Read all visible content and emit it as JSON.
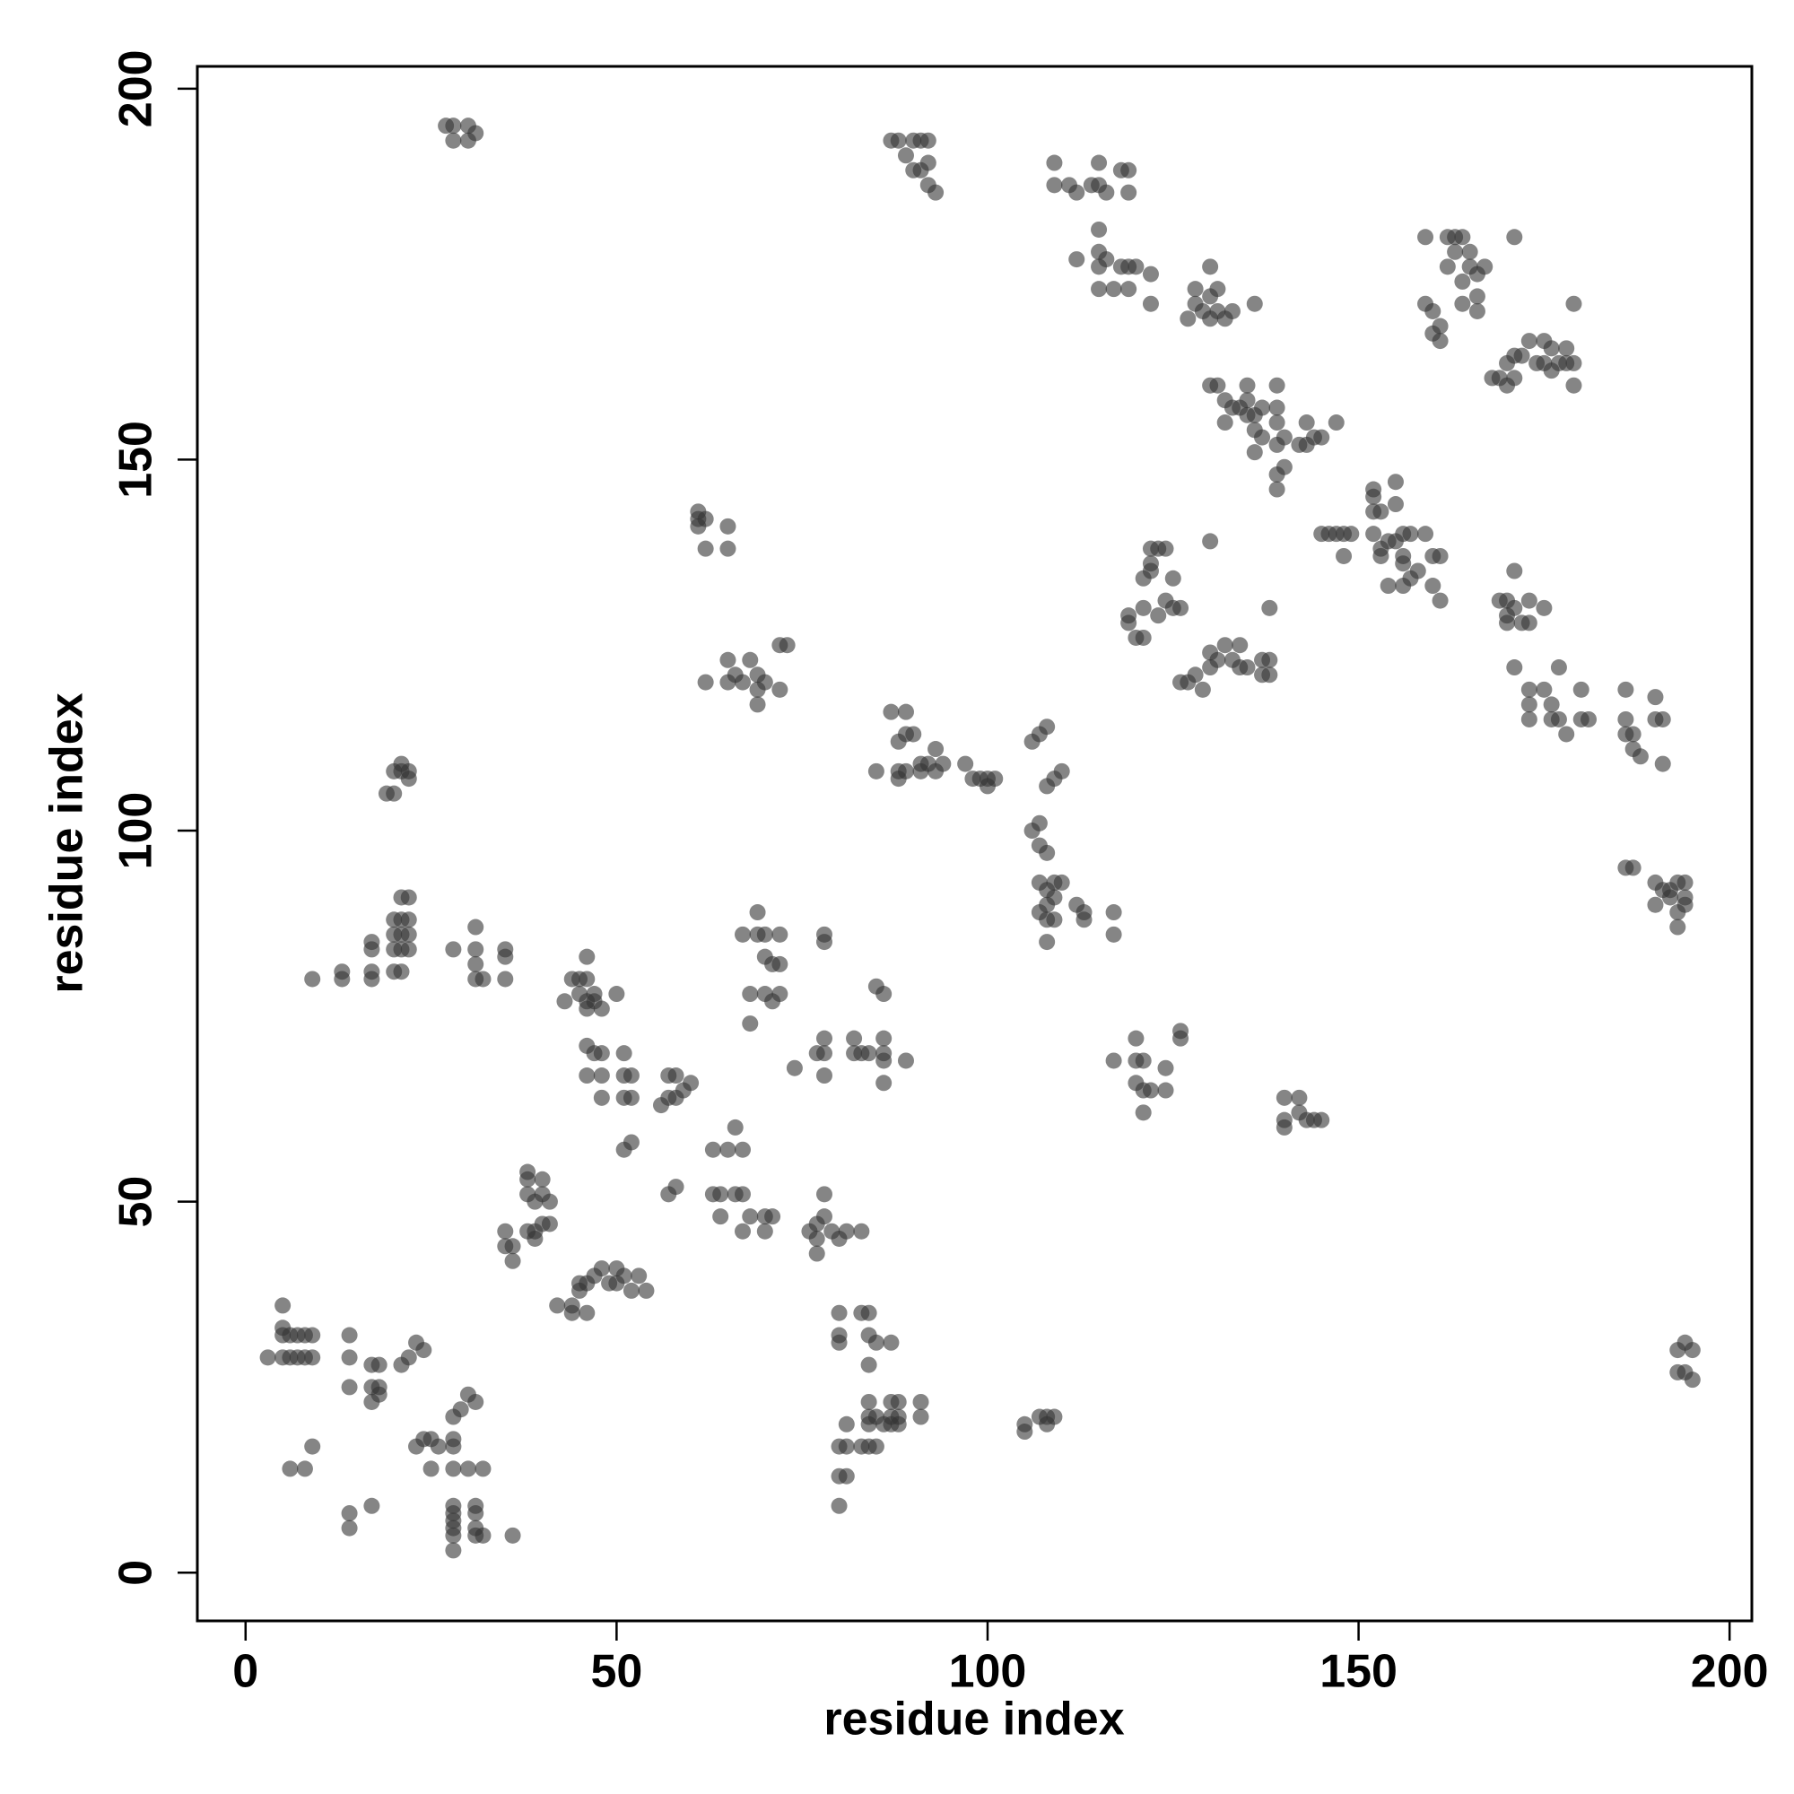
{
  "chart_data": {
    "type": "scatter",
    "xlabel": "residue index",
    "ylabel": "residue index",
    "xlim": [
      -6.5,
      203
    ],
    "ylim": [
      -6.5,
      203
    ],
    "xticks": [
      0,
      50,
      100,
      150,
      200
    ],
    "yticks": [
      0,
      50,
      100,
      150,
      200
    ],
    "color": "#333333",
    "x": [
      27,
      28,
      28,
      30,
      30,
      31,
      3,
      5,
      6,
      7,
      8,
      9,
      5,
      6,
      7,
      8,
      9,
      5,
      5,
      6,
      8,
      9,
      14,
      14,
      14,
      17,
      18,
      17,
      18,
      17,
      18,
      21,
      22,
      23,
      24,
      23,
      24,
      25,
      25,
      28,
      28,
      28,
      29,
      30,
      31,
      28,
      28,
      28,
      28,
      28,
      28,
      31,
      31,
      31,
      31,
      32,
      36,
      30,
      32,
      14,
      14,
      17,
      26,
      28,
      9,
      13,
      13,
      17,
      17,
      17,
      17,
      20,
      21,
      20,
      21,
      22,
      20,
      21,
      22,
      20,
      21,
      22,
      21,
      22,
      28,
      31,
      31,
      31,
      32,
      35,
      35,
      35,
      31,
      19,
      20,
      20,
      21,
      22,
      21,
      22,
      35,
      35,
      36,
      36,
      38,
      38,
      40,
      38,
      39,
      40,
      41,
      38,
      39,
      40,
      41,
      39,
      42,
      44,
      44,
      46,
      45,
      45,
      46,
      47,
      48,
      49,
      50,
      50,
      51,
      52,
      53,
      54,
      43,
      44,
      45,
      46,
      45,
      46,
      47,
      47,
      46,
      46,
      48,
      46,
      47,
      48,
      46,
      48,
      48,
      50,
      51,
      51,
      52,
      51,
      52,
      51,
      52,
      57,
      58,
      59,
      60,
      56,
      57,
      58,
      57,
      58,
      61,
      61,
      62,
      61,
      62,
      65,
      65,
      62,
      65,
      65,
      66,
      67,
      68,
      69,
      69,
      70,
      69,
      72,
      73,
      72,
      63,
      65,
      66,
      67,
      63,
      64,
      64,
      66,
      67,
      67,
      68,
      70,
      70,
      71,
      67,
      69,
      69,
      70,
      72,
      70,
      71,
      72,
      70,
      71,
      72,
      68,
      68,
      74,
      77,
      78,
      78,
      78,
      78,
      78,
      77,
      78,
      79,
      80,
      81,
      76,
      77,
      77,
      78,
      83,
      80,
      80,
      80,
      83,
      84,
      84,
      84,
      85,
      87,
      80,
      81,
      81,
      80,
      81,
      80,
      83,
      84,
      85,
      84,
      84,
      84,
      85,
      86,
      87,
      87,
      87,
      88,
      88,
      88,
      91,
      91,
      82,
      82,
      83,
      84,
      86,
      86,
      86,
      86,
      89,
      85,
      86,
      85,
      87,
      88,
      88,
      89,
      89,
      88,
      89,
      90,
      91,
      91,
      92,
      93,
      93,
      94,
      97,
      98,
      99,
      100,
      100,
      101,
      88,
      89,
      90,
      91,
      92,
      90,
      91,
      92,
      93,
      92,
      87,
      106,
      107,
      108,
      108,
      109,
      110,
      106,
      107,
      107,
      108,
      107,
      108,
      109,
      110,
      108,
      109,
      107,
      108,
      109,
      108,
      112,
      113,
      113,
      117,
      117,
      105,
      105,
      107,
      108,
      109,
      108,
      117,
      120,
      121,
      120,
      120,
      121,
      122,
      121,
      124,
      124,
      126,
      126,
      109,
      109,
      111,
      112,
      114,
      115,
      115,
      116,
      118,
      119,
      119,
      112,
      115,
      115,
      115,
      116,
      117,
      115,
      118,
      119,
      120,
      119,
      122,
      122,
      119,
      120,
      121,
      119,
      121,
      121,
      122,
      122,
      123,
      124,
      125,
      124,
      123,
      125,
      126,
      122,
      126,
      127,
      128,
      129,
      130,
      130,
      131,
      132,
      133,
      134,
      134,
      135,
      137,
      138,
      137,
      138,
      138,
      130,
      127,
      128,
      128,
      129,
      130,
      130,
      131,
      131,
      132,
      133,
      130,
      136,
      130,
      131,
      132,
      132,
      133,
      134,
      135,
      135,
      135,
      136,
      136,
      136,
      137,
      137,
      139,
      139,
      139,
      139,
      140,
      139,
      140,
      139,
      143,
      143,
      144,
      145,
      147,
      142,
      145,
      146,
      147,
      148,
      149,
      148,
      152,
      152,
      152,
      153,
      152,
      153,
      153,
      154,
      155,
      155,
      155,
      156,
      156,
      156,
      157,
      157,
      158,
      159,
      160,
      161,
      160,
      161,
      154,
      156,
      159,
      159,
      160,
      160,
      161,
      161,
      162,
      162,
      163,
      163,
      164,
      164,
      164,
      165,
      165,
      166,
      166,
      166,
      167,
      171,
      168,
      169,
      170,
      170,
      171,
      171,
      172,
      173,
      174,
      175,
      175,
      176,
      176,
      177,
      178,
      178,
      179,
      179,
      179,
      169,
      170,
      170,
      170,
      171,
      171,
      172,
      173,
      173,
      175,
      171,
      173,
      173,
      173,
      175,
      176,
      176,
      177,
      177,
      178,
      180,
      180,
      181,
      186,
      186,
      186,
      187,
      187,
      188,
      190,
      190,
      191,
      191,
      186,
      187,
      190,
      190,
      191,
      192,
      192,
      193,
      194,
      194,
      193,
      194,
      193,
      193,
      194,
      195,
      193,
      194,
      195,
      142,
      143,
      144,
      145,
      140,
      140,
      142,
      140
    ],
    "values": [
      195,
      195,
      193,
      195,
      193,
      194,
      29,
      29,
      29,
      29,
      29,
      29,
      32,
      32,
      32,
      32,
      32,
      36,
      33,
      14,
      14,
      17,
      29,
      32,
      25,
      28,
      28,
      25,
      25,
      23,
      24,
      28,
      29,
      31,
      30,
      17,
      18,
      18,
      14,
      18,
      14,
      21,
      22,
      24,
      23,
      9,
      8,
      7,
      6,
      5,
      3,
      9,
      8,
      6,
      5,
      5,
      5,
      14,
      14,
      8,
      6,
      9,
      17,
      17,
      80,
      81,
      80,
      81,
      80,
      85,
      84,
      81,
      81,
      84,
      84,
      84,
      86,
      86,
      86,
      88,
      88,
      88,
      91,
      91,
      84,
      84,
      82,
      80,
      80,
      80,
      84,
      83,
      87,
      105,
      105,
      108,
      108,
      108,
      109,
      107,
      46,
      44,
      44,
      42,
      54,
      53,
      53,
      51,
      50,
      51,
      50,
      46,
      46,
      47,
      47,
      45,
      36,
      36,
      35,
      35,
      39,
      38,
      39,
      40,
      41,
      39,
      41,
      39,
      40,
      38,
      40,
      38,
      77,
      80,
      80,
      80,
      78,
      77,
      77,
      78,
      83,
      76,
      76,
      71,
      70,
      70,
      67,
      67,
      64,
      78,
      70,
      67,
      67,
      64,
      64,
      57,
      58,
      67,
      67,
      65,
      66,
      63,
      64,
      64,
      51,
      52,
      142,
      143,
      142,
      141,
      138,
      141,
      138,
      120,
      120,
      123,
      121,
      120,
      123,
      121,
      119,
      120,
      117,
      125,
      125,
      119,
      57,
      57,
      60,
      57,
      51,
      51,
      48,
      51,
      51,
      46,
      48,
      48,
      46,
      48,
      86,
      89,
      86,
      86,
      86,
      83,
      82,
      82,
      78,
      77,
      78,
      78,
      74,
      68,
      70,
      70,
      72,
      67,
      85,
      86,
      47,
      48,
      46,
      45,
      46,
      46,
      45,
      43,
      51,
      46,
      35,
      32,
      31,
      35,
      35,
      32,
      28,
      31,
      31,
      17,
      17,
      20,
      13,
      13,
      9,
      17,
      17,
      17,
      20,
      21,
      23,
      21,
      20,
      20,
      21,
      23,
      20,
      21,
      23,
      21,
      23,
      70,
      72,
      70,
      70,
      72,
      70,
      69,
      66,
      69,
      79,
      78,
      108,
      116,
      107,
      108,
      108,
      116,
      112,
      113,
      113,
      108,
      109,
      109,
      108,
      111,
      109,
      109,
      107,
      107,
      106,
      107,
      107,
      193,
      191,
      193,
      193,
      193,
      189,
      189,
      190,
      186,
      187,
      193,
      112,
      113,
      114,
      106,
      107,
      108,
      100,
      101,
      98,
      97,
      93,
      92,
      93,
      93,
      90,
      91,
      89,
      88,
      88,
      85,
      90,
      89,
      88,
      89,
      86,
      20,
      19,
      21,
      21,
      21,
      20,
      69,
      69,
      69,
      72,
      66,
      65,
      65,
      62,
      65,
      68,
      72,
      73,
      190,
      187,
      187,
      186,
      187,
      187,
      190,
      186,
      189,
      189,
      186,
      177,
      176,
      178,
      181,
      177,
      173,
      173,
      176,
      176,
      176,
      173,
      175,
      171,
      128,
      126,
      126,
      129,
      130,
      134,
      136,
      138,
      138,
      138,
      134,
      131,
      129,
      130,
      130,
      135,
      120,
      120,
      121,
      119,
      122,
      124,
      123,
      125,
      123,
      125,
      122,
      122,
      123,
      123,
      121,
      121,
      130,
      139,
      169,
      171,
      173,
      170,
      169,
      172,
      170,
      173,
      169,
      170,
      176,
      171,
      160,
      160,
      158,
      155,
      157,
      157,
      160,
      158,
      156,
      156,
      154,
      151,
      157,
      153,
      160,
      157,
      155,
      152,
      153,
      148,
      149,
      146,
      155,
      152,
      153,
      153,
      155,
      152,
      140,
      140,
      140,
      140,
      140,
      137,
      145,
      146,
      143,
      143,
      140,
      138,
      137,
      139,
      139,
      147,
      144,
      140,
      137,
      136,
      140,
      134,
      135,
      140,
      137,
      137,
      133,
      131,
      133,
      133,
      180,
      171,
      170,
      167,
      168,
      166,
      176,
      180,
      180,
      178,
      174,
      171,
      180,
      178,
      176,
      175,
      172,
      170,
      176,
      180,
      161,
      161,
      160,
      163,
      161,
      164,
      164,
      166,
      163,
      166,
      163,
      165,
      162,
      163,
      165,
      163,
      163,
      160,
      171,
      131,
      129,
      131,
      128,
      130,
      135,
      128,
      128,
      131,
      130,
      122,
      119,
      117,
      115,
      119,
      117,
      115,
      122,
      115,
      113,
      115,
      119,
      115,
      119,
      115,
      113,
      113,
      111,
      110,
      115,
      118,
      115,
      109,
      95,
      95,
      93,
      90,
      92,
      92,
      91,
      93,
      93,
      91,
      89,
      90,
      87,
      30,
      31,
      30,
      27,
      27,
      26,
      64,
      61,
      61,
      61,
      64,
      61,
      62,
      60
    ]
  }
}
